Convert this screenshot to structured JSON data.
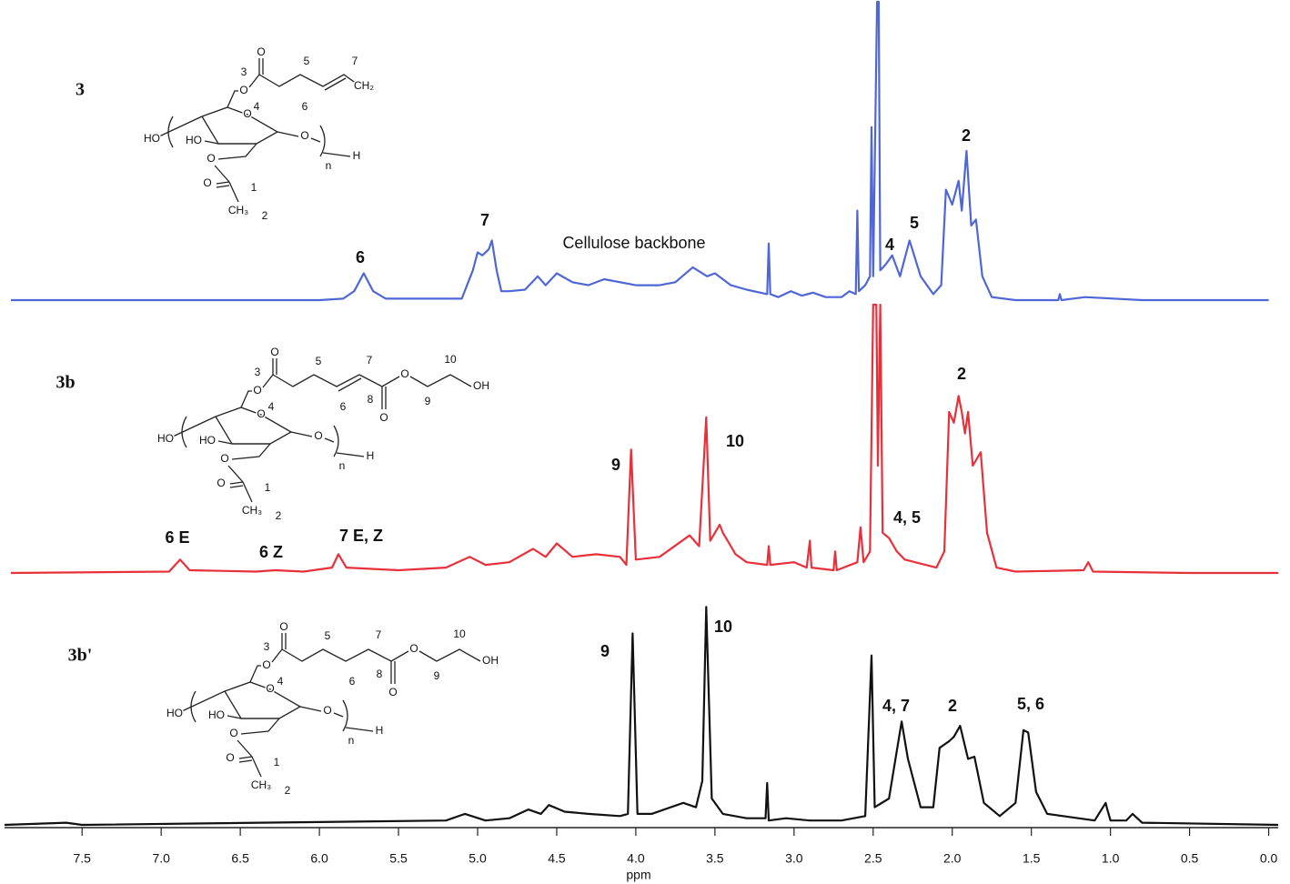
{
  "chart_data": [
    {
      "type": "line",
      "label": "3",
      "color": "#4f67d6",
      "xlim": [
        7.99,
        -0.06
      ],
      "ylim": [
        0,
        100
      ],
      "annotations": [
        "6",
        "7",
        "Cellulose backbone",
        "4",
        "5",
        "2"
      ],
      "structure": {
        "ring_labels": [
          "HO",
          "HO",
          "O",
          "O",
          "O",
          "O",
          "n",
          "H",
          "O",
          "1",
          "CH₃",
          "2"
        ],
        "chain_labels": [
          "O",
          "3",
          "5",
          "7",
          "CH₂",
          "4",
          "6"
        ]
      },
      "x": [
        7.95,
        6.0,
        5.85,
        5.78,
        5.72,
        5.66,
        5.58,
        5.1,
        5.03,
        5.0,
        4.97,
        4.93,
        4.91,
        4.88,
        4.85,
        4.8,
        4.7,
        4.62,
        4.57,
        4.5,
        4.4,
        4.3,
        4.2,
        4.0,
        3.85,
        3.75,
        3.64,
        3.55,
        3.5,
        3.4,
        3.3,
        3.17,
        3.16,
        3.15,
        3.1,
        3.02,
        2.95,
        2.88,
        2.8,
        2.7,
        2.65,
        2.61,
        2.6,
        2.59,
        2.55,
        2.52,
        2.51,
        2.5,
        2.475,
        2.465,
        2.455,
        2.42,
        2.38,
        2.33,
        2.27,
        2.2,
        2.12,
        2.07,
        2.04,
        2.0,
        1.96,
        1.94,
        1.91,
        1.88,
        1.85,
        1.81,
        1.75,
        1.6,
        1.33,
        1.32,
        1.31,
        1.16,
        0.8,
        0.0
      ],
      "values": [
        0,
        0,
        0.5,
        3,
        9,
        3,
        0.5,
        0.5,
        10,
        16,
        15,
        17,
        20,
        10,
        3,
        3,
        3.5,
        8,
        5,
        9,
        6,
        5,
        7,
        5,
        5,
        6,
        11,
        8,
        9,
        5,
        3.5,
        2,
        19,
        2,
        1,
        3,
        1.5,
        2.5,
        1,
        1,
        3,
        2,
        30,
        3,
        5,
        8,
        58,
        8,
        100,
        100,
        10,
        12,
        15,
        8,
        20,
        8,
        2,
        5,
        37,
        32,
        40,
        30,
        50,
        25,
        27,
        8,
        1,
        0,
        0,
        2,
        0,
        1,
        0,
        0
      ]
    },
    {
      "type": "line",
      "label": "3b",
      "color": "#e8303a",
      "xlim": [
        7.99,
        -0.06
      ],
      "ylim": [
        0,
        100
      ],
      "annotations": [
        "6 E",
        "6 Z",
        "7 E, Z",
        "9",
        "10",
        "4, 5",
        "2"
      ],
      "structure": {
        "ring_labels": [
          "HO",
          "HO",
          "O",
          "O",
          "O",
          "O",
          "n",
          "H",
          "O",
          "1",
          "CH₃",
          "2"
        ],
        "chain_labels": [
          "O",
          "3",
          "5",
          "7",
          "4",
          "6",
          "8",
          "O",
          "O",
          "9",
          "10",
          "OH"
        ]
      },
      "x": [
        7.95,
        6.95,
        6.88,
        6.82,
        6.4,
        6.28,
        6.1,
        5.92,
        5.88,
        5.83,
        5.5,
        5.2,
        5.05,
        4.95,
        4.8,
        4.65,
        4.57,
        4.5,
        4.4,
        4.25,
        4.1,
        4.06,
        4.03,
        4.0,
        3.85,
        3.66,
        3.6,
        3.555,
        3.53,
        3.47,
        3.45,
        3.4,
        3.37,
        3.3,
        3.17,
        3.16,
        3.15,
        3.0,
        2.92,
        2.9,
        2.89,
        2.75,
        2.74,
        2.73,
        2.6,
        2.58,
        2.56,
        2.52,
        2.5,
        2.48,
        2.47,
        2.455,
        2.44,
        2.4,
        2.35,
        2.3,
        2.1,
        2.05,
        2.02,
        1.99,
        1.96,
        1.94,
        1.92,
        1.9,
        1.87,
        1.82,
        1.78,
        1.72,
        1.6,
        1.17,
        1.14,
        1.11,
        0.5,
        -0.06
      ],
      "values": [
        0,
        0.5,
        5,
        1,
        0.5,
        1,
        0.5,
        2,
        7,
        2,
        1,
        2,
        6,
        3,
        4,
        9,
        6,
        11,
        6,
        7,
        6,
        3,
        46,
        5,
        6,
        14,
        10,
        58,
        12,
        18,
        15,
        10,
        7,
        4,
        3,
        10,
        3,
        4,
        2,
        12,
        2,
        1,
        8,
        1,
        4,
        17,
        4,
        8,
        100,
        100,
        40,
        100,
        15,
        13,
        8,
        5,
        2,
        8,
        60,
        56,
        66,
        60,
        52,
        60,
        40,
        45,
        15,
        2,
        0.5,
        1,
        4,
        0.5,
        0,
        0
      ]
    },
    {
      "type": "line",
      "label": "3b'",
      "color": "#111111",
      "xlim": [
        7.99,
        -0.06
      ],
      "ylim": [
        0,
        100
      ],
      "xlabel": "ppm",
      "xticks": [
        7.5,
        {
          "value": 7,
          "label": "7.0"
        },
        6.5,
        {
          "value": 6,
          "label": "6.0"
        },
        5.5,
        {
          "value": 5,
          "label": "5.0"
        },
        4.5,
        {
          "value": 4,
          "label": "4.0"
        },
        3.5,
        {
          "value": 3,
          "label": "3.0"
        },
        2.5,
        {
          "value": 2,
          "label": "2.0"
        },
        1.5,
        {
          "value": 1,
          "label": "1.0"
        },
        0.5,
        {
          "value": 0,
          "label": "0.0"
        }
      ],
      "annotations": [
        "9",
        "10",
        "4, 7",
        "2",
        "5, 6"
      ],
      "structure": {
        "ring_labels": [
          "HO",
          "HO",
          "O",
          "O",
          "O",
          "O",
          "n",
          "H",
          "O",
          "1",
          "CH₃",
          "2"
        ],
        "chain_labels": [
          "O",
          "3",
          "5",
          "7",
          "4",
          "6",
          "8",
          "O",
          "O",
          "9",
          "10",
          "OH"
        ]
      },
      "x": [
        7.99,
        7.6,
        7.5,
        5.2,
        5.08,
        4.95,
        4.8,
        4.68,
        4.6,
        4.55,
        4.45,
        4.3,
        4.1,
        4.05,
        4.02,
        3.99,
        3.9,
        3.7,
        3.62,
        3.58,
        3.555,
        3.52,
        3.45,
        3.3,
        3.18,
        3.17,
        3.16,
        3.05,
        2.9,
        2.7,
        2.55,
        2.51,
        2.49,
        2.4,
        2.32,
        2.28,
        2.2,
        2.12,
        2.08,
        2.02,
        1.99,
        1.95,
        1.9,
        1.86,
        1.8,
        1.7,
        1.6,
        1.55,
        1.52,
        1.47,
        1.4,
        1.3,
        1.1,
        1.03,
        1.02,
        1.0,
        0.9,
        0.86,
        0.8,
        -0.06
      ],
      "values": [
        0,
        1,
        0,
        2,
        5,
        2,
        3,
        7,
        5,
        9,
        6,
        5,
        4,
        5,
        87,
        5,
        5,
        10,
        8,
        20,
        99,
        12,
        5,
        3,
        3,
        19,
        2,
        3,
        2,
        2,
        4,
        77,
        8,
        12,
        47,
        30,
        8,
        8,
        35,
        38,
        40,
        45,
        30,
        31,
        10,
        4,
        10,
        43,
        42,
        15,
        5,
        4,
        2,
        10,
        7,
        2,
        2,
        5,
        1,
        0
      ]
    }
  ]
}
